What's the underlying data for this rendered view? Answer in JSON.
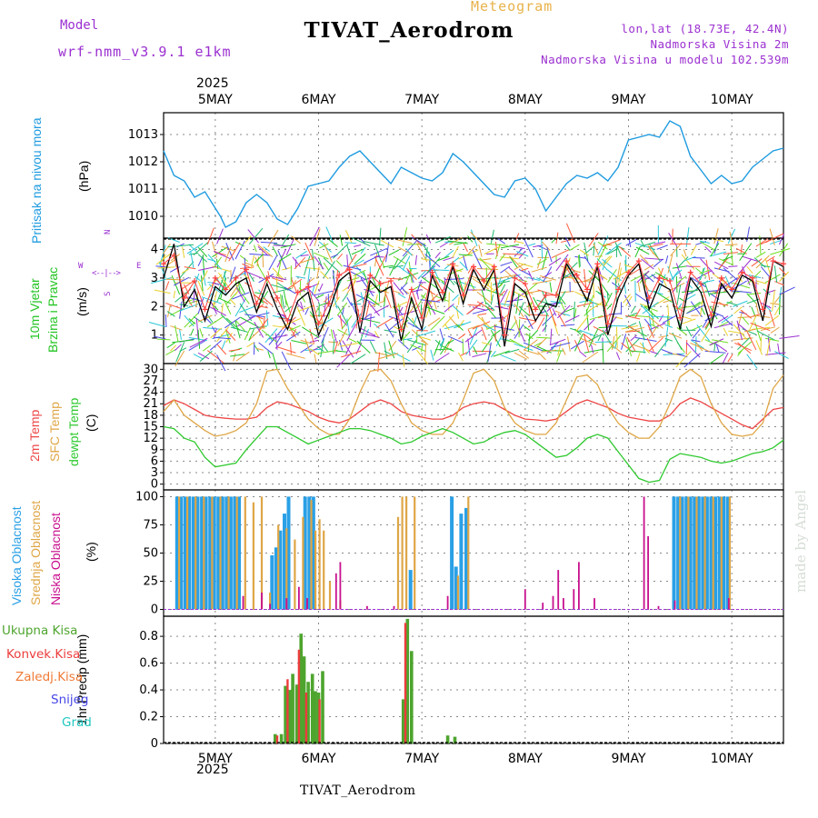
{
  "header": {
    "title": "TIVAT_Aerodrom",
    "meteogram_label": "Meteogram",
    "model_label": "Model",
    "model_value": "wrf-nmm_v3.9.1 e1km",
    "location": "lon,lat (18.73E, 42.4N)",
    "altitude": "Nadmorska Visina 2m",
    "model_altitude": "Nadmorska Visina u modelu 102.539m"
  },
  "footer": {
    "station": "TIVAT_Aerodrom",
    "watermark": "made by Angel"
  },
  "x_axis": {
    "year": "2025",
    "day_labels": [
      "5MAY",
      "6MAY",
      "7MAY",
      "8MAY",
      "9MAY",
      "10MAY"
    ],
    "day_positions": [
      5,
      6,
      7,
      8,
      9,
      10
    ],
    "range": [
      4.5,
      10.5
    ]
  },
  "wind_direction_key": {
    "n": "N",
    "s": "S",
    "w": "W",
    "e": "E"
  },
  "chart_data": [
    {
      "type": "line",
      "panel": "pressure",
      "ylabel_rotated": [
        "Pritisak na nivou mora",
        "(hPa)"
      ],
      "ylim": [
        1009.2,
        1013.8
      ],
      "yticks": [
        1010,
        1011,
        1012,
        1013
      ],
      "grid": true,
      "series": [
        {
          "name": "Pritisak na nivou mora",
          "color": "#1e9be0",
          "x": [
            4.5,
            4.6,
            4.7,
            4.8,
            4.9,
            5.0,
            5.05,
            5.1,
            5.2,
            5.3,
            5.4,
            5.5,
            5.6,
            5.7,
            5.8,
            5.9,
            6.0,
            6.1,
            6.2,
            6.3,
            6.4,
            6.5,
            6.6,
            6.7,
            6.8,
            6.9,
            7.0,
            7.1,
            7.2,
            7.3,
            7.4,
            7.5,
            7.6,
            7.7,
            7.8,
            7.9,
            8.0,
            8.1,
            8.2,
            8.3,
            8.4,
            8.5,
            8.6,
            8.7,
            8.8,
            8.9,
            9.0,
            9.1,
            9.2,
            9.3,
            9.4,
            9.5,
            9.6,
            9.7,
            9.8,
            9.9,
            10.0,
            10.1,
            10.2,
            10.3,
            10.4,
            10.5
          ],
          "values": [
            1012.4,
            1011.5,
            1011.3,
            1010.7,
            1010.9,
            1010.3,
            1010.0,
            1009.6,
            1009.8,
            1010.5,
            1010.8,
            1010.5,
            1009.9,
            1009.7,
            1010.3,
            1011.1,
            1011.2,
            1011.3,
            1011.8,
            1012.2,
            1012.4,
            1012.0,
            1011.6,
            1011.2,
            1011.8,
            1011.6,
            1011.4,
            1011.3,
            1011.6,
            1012.3,
            1012.0,
            1011.6,
            1011.2,
            1010.8,
            1010.7,
            1011.3,
            1011.4,
            1011.0,
            1010.2,
            1010.7,
            1011.2,
            1011.5,
            1011.4,
            1011.6,
            1011.3,
            1011.8,
            1012.8,
            1012.9,
            1013.0,
            1012.9,
            1013.5,
            1013.3,
            1012.2,
            1011.7,
            1011.2,
            1011.5,
            1011.2,
            1011.3,
            1011.8,
            1012.1,
            1012.4,
            1012.5
          ]
        }
      ]
    },
    {
      "type": "line",
      "panel": "wind",
      "ylabel_rotated": [
        "10m Vjetar",
        "Brzina i Pravac",
        "(m/s)"
      ],
      "ylim": [
        0,
        4.4
      ],
      "yticks": [
        1,
        2,
        3,
        4
      ],
      "grid": true,
      "series": [
        {
          "color": "#000000",
          "x": [
            4.5,
            4.6,
            4.7,
            4.8,
            4.9,
            5.0,
            5.1,
            5.2,
            5.3,
            5.4,
            5.5,
            5.6,
            5.7,
            5.8,
            5.9,
            6.0,
            6.1,
            6.2,
            6.3,
            6.4,
            6.5,
            6.6,
            6.7,
            6.8,
            6.9,
            7.0,
            7.1,
            7.2,
            7.3,
            7.4,
            7.5,
            7.6,
            7.7,
            7.8,
            7.9,
            8.0,
            8.1,
            8.2,
            8.3,
            8.4,
            8.5,
            8.6,
            8.7,
            8.8,
            8.9,
            9.0,
            9.1,
            9.2,
            9.3,
            9.4,
            9.5,
            9.6,
            9.7,
            9.8,
            9.9,
            10.0,
            10.1,
            10.2,
            10.3,
            10.4,
            10.5
          ],
          "values": [
            3.0,
            4.2,
            2.0,
            2.6,
            1.5,
            2.7,
            2.4,
            2.8,
            3.0,
            1.8,
            2.8,
            1.9,
            1.2,
            2.2,
            2.5,
            1.0,
            1.8,
            2.9,
            3.2,
            1.1,
            2.9,
            2.5,
            2.7,
            0.8,
            2.3,
            1.2,
            3.1,
            2.2,
            3.4,
            2.1,
            3.3,
            2.6,
            3.3,
            0.6,
            2.8,
            2.5,
            1.5,
            2.1,
            2.0,
            3.5,
            2.9,
            2.2,
            3.4,
            1.0,
            2.3,
            3.1,
            3.5,
            1.9,
            2.8,
            2.6,
            1.2,
            3.0,
            2.5,
            1.3,
            2.8,
            2.3,
            3.1,
            2.9,
            1.5,
            3.6,
            3.4
          ]
        },
        {
          "color": "#ff4040",
          "x": [
            4.5,
            4.6,
            4.7,
            4.8,
            4.9,
            5.0,
            5.1,
            5.2,
            5.3,
            5.4,
            5.5,
            5.6,
            5.7,
            5.8,
            5.9,
            6.0,
            6.1,
            6.2,
            6.3,
            6.4,
            6.5,
            6.6,
            6.7,
            6.8,
            6.9,
            7.0,
            7.1,
            7.2,
            7.3,
            7.4,
            7.5,
            7.6,
            7.7,
            7.8,
            7.9,
            8.0,
            8.1,
            8.2,
            8.3,
            8.4,
            8.5,
            8.6,
            8.7,
            8.8,
            8.9,
            9.0,
            9.1,
            9.2,
            9.3,
            9.4,
            9.5,
            9.6,
            9.7,
            9.8,
            9.9,
            10.0,
            10.1,
            10.2,
            10.3,
            10.4,
            10.5
          ],
          "values": [
            3.5,
            3.8,
            2.3,
            2.9,
            1.9,
            3.0,
            2.6,
            3.0,
            3.3,
            2.1,
            3.0,
            2.3,
            1.5,
            2.5,
            2.7,
            1.4,
            2.1,
            3.1,
            3.3,
            1.5,
            3.1,
            2.8,
            2.9,
            1.2,
            2.6,
            1.6,
            3.2,
            2.5,
            3.5,
            2.4,
            3.4,
            2.9,
            3.4,
            1.0,
            3.0,
            2.8,
            1.9,
            2.4,
            2.4,
            3.6,
            3.1,
            2.6,
            3.5,
            1.4,
            2.6,
            3.2,
            3.6,
            2.3,
            3.0,
            2.9,
            1.6,
            3.2,
            2.8,
            1.7,
            3.0,
            2.6,
            3.2,
            3.0,
            1.9,
            3.6,
            3.5
          ]
        }
      ]
    },
    {
      "type": "line",
      "panel": "temperature",
      "ylabel_rotated": [
        "2m Temp",
        "SFC Temp",
        "dewpt Temp",
        "(C)"
      ],
      "ylim": [
        -1.5,
        31.5
      ],
      "yticks": [
        0,
        3,
        6,
        9,
        12,
        15,
        18,
        21,
        24,
        27,
        30
      ],
      "grid": true,
      "x": [
        4.5,
        4.6,
        4.7,
        4.8,
        4.9,
        5.0,
        5.1,
        5.2,
        5.3,
        5.4,
        5.5,
        5.6,
        5.7,
        5.8,
        5.9,
        6.0,
        6.1,
        6.2,
        6.3,
        6.4,
        6.5,
        6.6,
        6.7,
        6.8,
        6.9,
        7.0,
        7.1,
        7.2,
        7.3,
        7.4,
        7.5,
        7.6,
        7.7,
        7.8,
        7.9,
        8.0,
        8.1,
        8.2,
        8.3,
        8.4,
        8.5,
        8.6,
        8.7,
        8.8,
        8.9,
        9.0,
        9.1,
        9.2,
        9.3,
        9.4,
        9.5,
        9.6,
        9.7,
        9.8,
        9.9,
        10.0,
        10.1,
        10.2,
        10.3,
        10.4,
        10.5
      ],
      "series": [
        {
          "name": "2m Temp",
          "color": "#ee4545",
          "values": [
            20.5,
            22,
            21,
            19.5,
            18,
            17.5,
            17.2,
            17,
            17,
            17.5,
            20,
            21.5,
            21,
            20,
            19,
            17.5,
            16.5,
            16,
            17,
            19,
            21,
            22,
            21,
            19,
            18,
            17.5,
            17,
            17,
            18,
            20,
            21,
            21.5,
            21,
            19.5,
            18,
            17,
            16.8,
            16.5,
            17,
            19,
            21,
            22,
            21,
            20,
            18.5,
            17.5,
            17,
            16.5,
            16.5,
            18,
            21,
            22.5,
            21.5,
            20,
            18.5,
            17,
            15.5,
            14.5,
            17,
            19.5,
            20
          ]
        },
        {
          "name": "SFC Temp",
          "color": "#dfa646",
          "values": [
            19,
            22,
            18,
            16,
            14,
            12.5,
            13,
            14,
            16,
            21,
            29.5,
            30,
            25,
            21,
            17,
            14.5,
            13,
            13,
            17,
            24,
            29.5,
            30,
            27,
            21,
            16,
            14,
            13,
            13,
            16,
            22,
            29,
            30,
            27,
            20,
            16,
            14,
            13,
            13,
            16,
            22,
            28,
            28.5,
            26,
            20,
            16,
            13.5,
            12,
            12,
            15,
            21,
            28,
            30,
            28,
            21,
            16,
            13,
            12.5,
            13,
            16,
            25,
            28.5
          ]
        },
        {
          "name": "dewpt Temp",
          "color": "#2ec92e",
          "values": [
            15,
            14.5,
            12,
            11,
            7,
            4.5,
            5,
            5.5,
            9,
            12,
            15,
            15,
            13.5,
            12,
            10.5,
            11.5,
            12.5,
            13.5,
            14.5,
            14.5,
            14,
            13,
            12,
            10.5,
            11,
            12.5,
            13.5,
            14.5,
            13.5,
            12,
            10.5,
            11,
            12.5,
            13.5,
            14,
            13,
            11,
            9,
            7,
            7.5,
            9.5,
            12,
            13,
            12,
            8.5,
            5,
            1.5,
            0.5,
            1,
            6.5,
            8,
            7.5,
            7,
            6,
            5.5,
            6,
            7,
            8,
            8.5,
            9.5,
            11.5
          ]
        }
      ]
    },
    {
      "type": "bar",
      "panel": "cloud_cover",
      "ylabel_rotated": [
        "Visoka Oblacnost",
        "Srednja Oblacnost",
        "Niska Oblacnost",
        "(%)"
      ],
      "ylim": [
        -6,
        106
      ],
      "yticks": [
        0,
        25,
        50,
        75,
        100
      ],
      "grid": true,
      "series": [
        {
          "name": "Visoka Oblacnost",
          "color": "#2aa0e6",
          "x": [
            4.63,
            4.67,
            4.71,
            4.75,
            4.79,
            4.83,
            4.87,
            4.91,
            4.95,
            4.99,
            5.03,
            5.07,
            5.11,
            5.15,
            5.19,
            5.23,
            5.55,
            5.59,
            5.63,
            5.67,
            5.71,
            5.87,
            5.91,
            5.95,
            6.89,
            7.29,
            7.33,
            7.38,
            7.43,
            9.44,
            9.48,
            9.52,
            9.56,
            9.6,
            9.64,
            9.68,
            9.72,
            9.76,
            9.8,
            9.84,
            9.88,
            9.92,
            9.96
          ],
          "values": [
            100,
            100,
            100,
            100,
            100,
            100,
            100,
            100,
            100,
            100,
            100,
            100,
            100,
            100,
            100,
            100,
            48,
            55,
            70,
            85,
            100,
            100,
            100,
            100,
            35,
            100,
            38,
            85,
            90,
            100,
            100,
            100,
            100,
            100,
            100,
            100,
            100,
            100,
            100,
            100,
            100,
            100,
            100
          ]
        },
        {
          "name": "Srednja Oblacnost",
          "color": "#dfa646",
          "x": [
            4.65,
            4.73,
            4.81,
            4.89,
            4.97,
            5.05,
            5.13,
            5.21,
            5.29,
            5.37,
            5.45,
            5.53,
            5.61,
            5.69,
            5.77,
            5.85,
            5.93,
            5.97,
            6.01,
            6.05,
            6.11,
            6.21,
            6.77,
            6.81,
            6.85,
            6.93,
            7.35,
            7.45,
            9.5,
            9.58,
            9.66,
            9.74,
            9.82,
            9.9,
            9.98
          ],
          "values": [
            100,
            100,
            100,
            100,
            100,
            100,
            100,
            100,
            100,
            95,
            100,
            15,
            75,
            72,
            62,
            82,
            97,
            70,
            80,
            70,
            25,
            8,
            82,
            100,
            100,
            100,
            30,
            100,
            100,
            100,
            100,
            100,
            100,
            100,
            100
          ]
        },
        {
          "name": "Niska Oblacnost",
          "color": "#c8108e",
          "x": [
            5.27,
            5.45,
            5.53,
            5.69,
            5.81,
            5.89,
            6.17,
            6.21,
            6.47,
            6.73,
            7.25,
            8.0,
            8.17,
            8.27,
            8.32,
            8.37,
            8.47,
            8.52,
            8.67,
            9.15,
            9.19,
            9.29,
            9.45,
            9.97
          ],
          "values": [
            12,
            15,
            5,
            10,
            20,
            10,
            32,
            42,
            3,
            3,
            12,
            18,
            6,
            12,
            35,
            10,
            18,
            42,
            10,
            100,
            65,
            3,
            8,
            10
          ]
        }
      ]
    },
    {
      "type": "bar",
      "panel": "precipitation",
      "ylabel_rotated": [
        "1hr Precip (mm)"
      ],
      "ylim": [
        0,
        0.95
      ],
      "yticks": [
        0,
        0.2,
        0.4,
        0.6,
        0.8
      ],
      "grid": true,
      "series": [
        {
          "name": "Ukupna Kisa",
          "color": "#4ea52e",
          "x": [
            5.58,
            5.64,
            5.68,
            5.72,
            5.75,
            5.79,
            5.83,
            5.86,
            5.9,
            5.94,
            5.97,
            6.0,
            6.04,
            6.82,
            6.86,
            6.9,
            7.25,
            7.32
          ],
          "values": [
            0.07,
            0.07,
            0.43,
            0.4,
            0.52,
            0.44,
            0.82,
            0.65,
            0.46,
            0.52,
            0.39,
            0.38,
            0.54,
            0.33,
            0.93,
            0.69,
            0.06,
            0.05
          ]
        },
        {
          "name": "Konvek.Kisa",
          "color": "#ec3c3c",
          "x": [
            5.6,
            5.7,
            5.81,
            5.88,
            6.01,
            6.84
          ],
          "values": [
            0.06,
            0.48,
            0.7,
            0.38,
            0.33,
            0.9
          ]
        },
        {
          "name": "Zaledj.Kisa",
          "color": "#f07a35",
          "x": [],
          "values": []
        },
        {
          "name": "Snijeg",
          "color": "#4848e8",
          "x": [],
          "values": []
        },
        {
          "name": "Grad",
          "color": "#20c8c0",
          "x": [],
          "values": []
        }
      ]
    }
  ]
}
